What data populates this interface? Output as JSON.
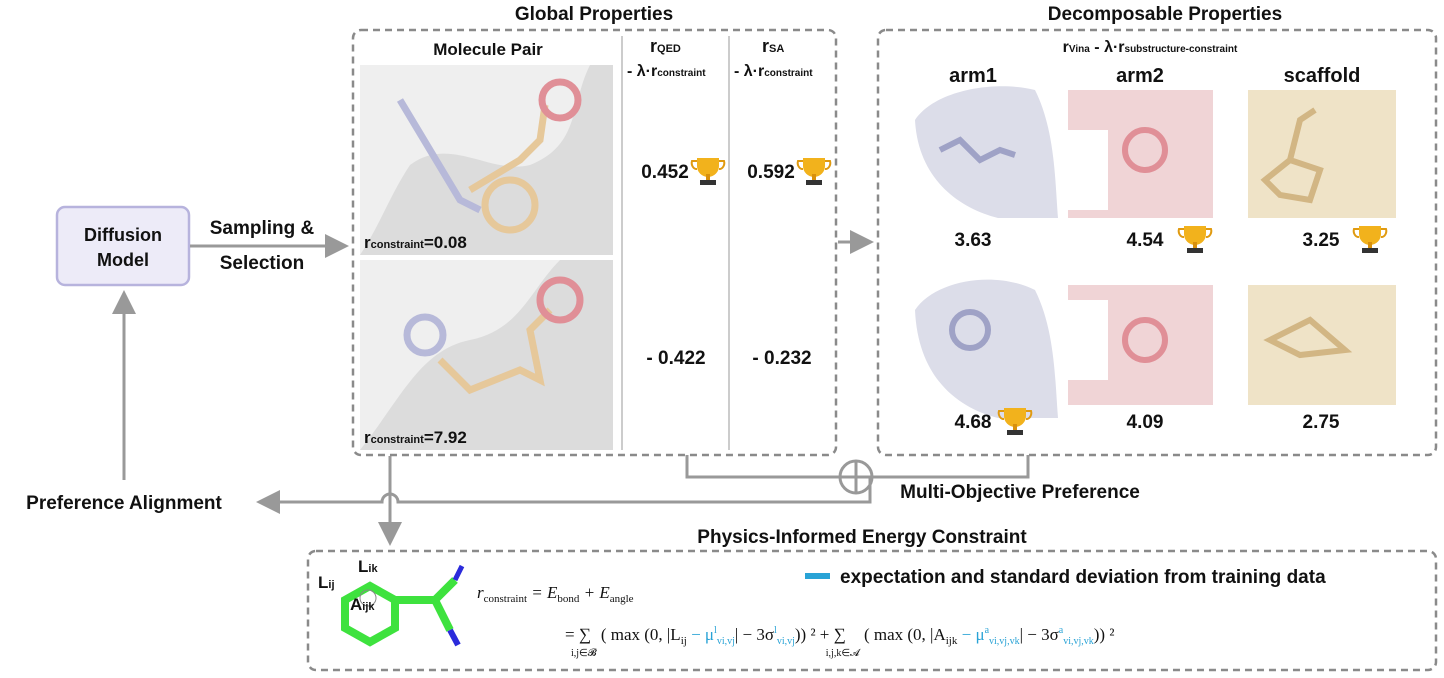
{
  "global": {
    "title": "Global Properties",
    "pair_header": "Molecule Pair",
    "columns": [
      {
        "r": "r",
        "sub": "QED",
        "rest": "- λ·r",
        "rest_sub": "constraint"
      },
      {
        "r": "r",
        "sub": "SA",
        "rest": "- λ·r",
        "rest_sub": "constraint"
      }
    ],
    "constraints": [
      {
        "r": "r",
        "sub": "constraint",
        "val": "=0.08"
      },
      {
        "r": "r",
        "sub": "constraint",
        "val": "=7.92"
      }
    ],
    "values": [
      [
        "0.452",
        "0.592"
      ],
      [
        "- 0.422",
        "- 0.232"
      ]
    ]
  },
  "decomposable": {
    "title": "Decomposable Properties",
    "header": {
      "r": "r",
      "sub": "Vina",
      "rest": " - λ·r",
      "rest_sub": "substructure-constraint"
    },
    "columns": [
      "arm1",
      "arm2",
      "scaffold"
    ],
    "values": [
      [
        "3.63",
        "4.54",
        "3.25"
      ],
      [
        "4.68",
        "4.09",
        "2.75"
      ]
    ]
  },
  "model": {
    "line1": "Diffusion",
    "line2": "Model"
  },
  "sampling": {
    "line1": "Sampling &",
    "line2": "Selection"
  },
  "preference_alignment": "Preference Alignment",
  "multi_objective": "Multi-Objective Preference",
  "physics": {
    "title": "Physics-Informed Energy Constraint",
    "labels": [
      {
        "t": "L",
        "s": "ij"
      },
      {
        "t": "L",
        "s": "ik"
      },
      {
        "t": "A",
        "s": "ijk"
      }
    ],
    "legend": "expectation and standard deviation from training data",
    "line1": [
      "r",
      "constraint",
      " = E",
      "bond",
      " + E",
      "angle"
    ],
    "line2": [
      "= ∑",
      "i,j∈𝓑",
      " ( max (0,  |L",
      "ij",
      " − μ",
      "l",
      "vi,vj",
      "| − 3σ",
      "l",
      "vi,vj",
      ")) ² + ∑",
      "i,j,k∈𝓐",
      " ( max (0,  |A",
      "ijk",
      " − μ",
      "a",
      "vi,vj,vk",
      "| − 3σ",
      "a",
      "vi,vj,vk",
      ")) ²"
    ]
  }
}
